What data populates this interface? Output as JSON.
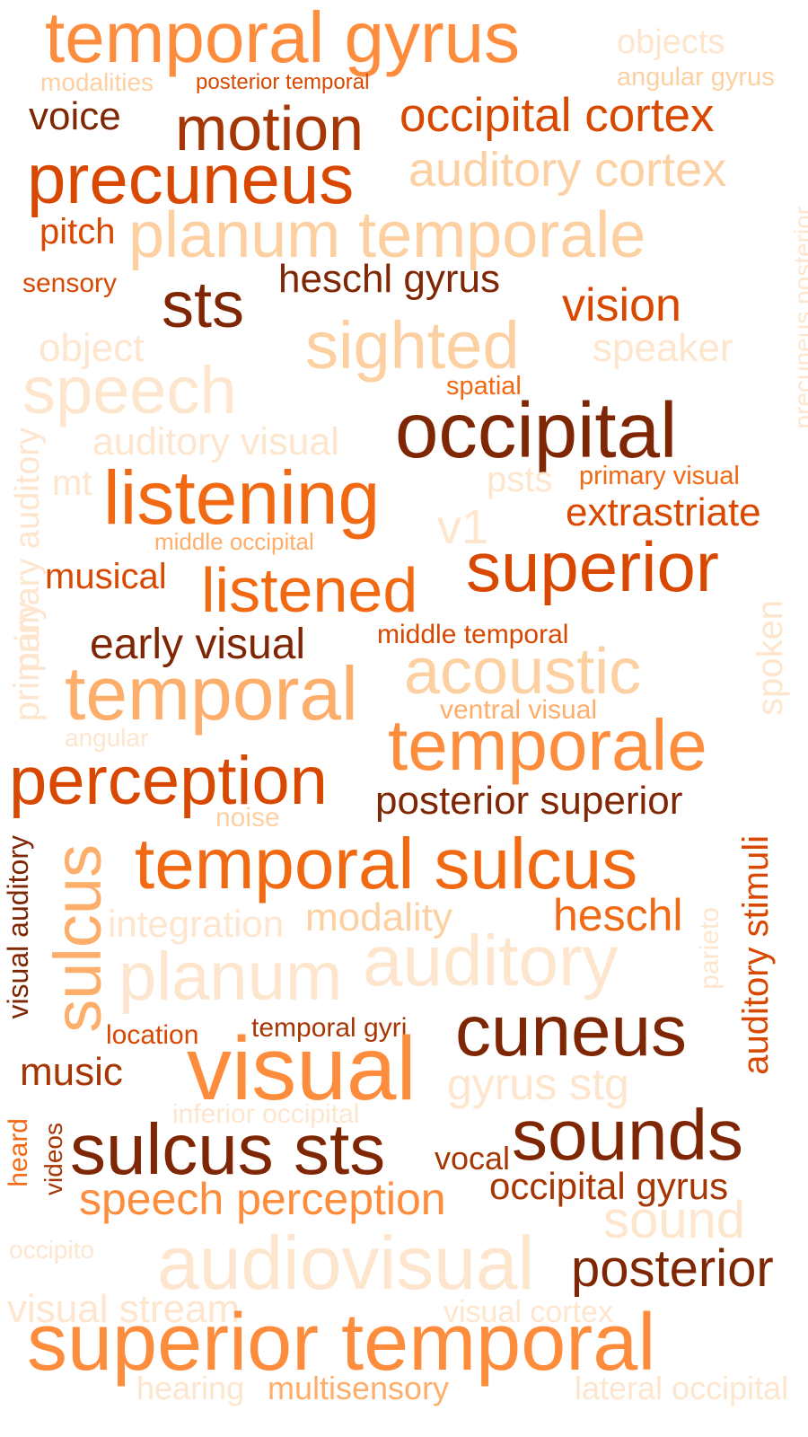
{
  "palette": {
    "darkest": "#7f2704",
    "dark": "#a63603",
    "deep": "#d94801",
    "strong": "#f16913",
    "mid": "#fd8d3c",
    "light": "#fdae6b",
    "pale": "#fdd0a2",
    "faint": "#fee6ce"
  },
  "words": [
    {
      "text": "temporal gyrus",
      "color": "#fd8d3c"
    },
    {
      "text": "objects",
      "color": "#fee6ce"
    },
    {
      "text": "modalities",
      "color": "#fdd0a2"
    },
    {
      "text": "posterior temporal",
      "color": "#d94801"
    },
    {
      "text": "angular gyrus",
      "color": "#fdd0a2"
    },
    {
      "text": "voice",
      "color": "#7f2704"
    },
    {
      "text": "motion",
      "color": "#a63603"
    },
    {
      "text": "occipital cortex",
      "color": "#d94801"
    },
    {
      "text": "precuneus",
      "color": "#d94801"
    },
    {
      "text": "auditory cortex",
      "color": "#fdd0a2"
    },
    {
      "text": "pitch",
      "color": "#d94801"
    },
    {
      "text": "planum temporale",
      "color": "#fdd0a2"
    },
    {
      "text": "sensory",
      "color": "#d94801"
    },
    {
      "text": "heschl gyrus",
      "color": "#7f2704"
    },
    {
      "text": "sts",
      "color": "#7f2704"
    },
    {
      "text": "vision",
      "color": "#d94801"
    },
    {
      "text": "precuneus posterior",
      "color": "#fee6ce"
    },
    {
      "text": "object",
      "color": "#fee6ce"
    },
    {
      "text": "sighted",
      "color": "#fdd0a2"
    },
    {
      "text": "speaker",
      "color": "#fee6ce"
    },
    {
      "text": "speech",
      "color": "#fee6ce"
    },
    {
      "text": "spatial",
      "color": "#f16913"
    },
    {
      "text": "occipital",
      "color": "#7f2704"
    },
    {
      "text": "auditory visual",
      "color": "#fee6ce"
    },
    {
      "text": "primary auditory",
      "color": "#fee6ce"
    },
    {
      "text": "mt",
      "color": "#fee6ce"
    },
    {
      "text": "listening",
      "color": "#f16913"
    },
    {
      "text": "psts",
      "color": "#fee6ce"
    },
    {
      "text": "primary visual",
      "color": "#f16913"
    },
    {
      "text": "extrastriate",
      "color": "#d94801"
    },
    {
      "text": "v1",
      "color": "#fee6ce"
    },
    {
      "text": "middle occipital",
      "color": "#fdae6b"
    },
    {
      "text": "superior",
      "color": "#d94801"
    },
    {
      "text": "musical",
      "color": "#d94801"
    },
    {
      "text": "listened",
      "color": "#f16913"
    },
    {
      "text": "spoken",
      "color": "#fee6ce"
    },
    {
      "text": "early visual",
      "color": "#7f2704"
    },
    {
      "text": "middle temporal",
      "color": "#d94801"
    },
    {
      "text": "primary",
      "color": "#fee6ce"
    },
    {
      "text": "acoustic",
      "color": "#fdd0a2"
    },
    {
      "text": "temporal",
      "color": "#fdae6b"
    },
    {
      "text": "ventral visual",
      "color": "#fdae6b"
    },
    {
      "text": "angular",
      "color": "#fee6ce"
    },
    {
      "text": "temporale",
      "color": "#fd8d3c"
    },
    {
      "text": "perception",
      "color": "#d94801"
    },
    {
      "text": "posterior superior",
      "color": "#7f2704"
    },
    {
      "text": "noise",
      "color": "#fdd0a2"
    },
    {
      "text": "visual auditory",
      "color": "#7f2704"
    },
    {
      "text": "sulcus",
      "color": "#fdae6b"
    },
    {
      "text": "temporal sulcus",
      "color": "#f16913"
    },
    {
      "text": "auditory stimuli",
      "color": "#d94801"
    },
    {
      "text": "integration",
      "color": "#fee6ce"
    },
    {
      "text": "modality",
      "color": "#fdd0a2"
    },
    {
      "text": "heschl",
      "color": "#f16913"
    },
    {
      "text": "parieto",
      "color": "#fee6ce"
    },
    {
      "text": "planum",
      "color": "#fee6ce"
    },
    {
      "text": "auditory",
      "color": "#fee6ce"
    },
    {
      "text": "location",
      "color": "#d94801"
    },
    {
      "text": "temporal gyri",
      "color": "#a63603"
    },
    {
      "text": "cuneus",
      "color": "#7f2704"
    },
    {
      "text": "music",
      "color": "#a63603"
    },
    {
      "text": "visual",
      "color": "#fd8d3c"
    },
    {
      "text": "gyrus stg",
      "color": "#fee6ce"
    },
    {
      "text": "inferior occipital",
      "color": "#fee6ce"
    },
    {
      "text": "heard",
      "color": "#f16913"
    },
    {
      "text": "videos",
      "color": "#a63603"
    },
    {
      "text": "sulcus sts",
      "color": "#7f2704"
    },
    {
      "text": "vocal",
      "color": "#a63603"
    },
    {
      "text": "sounds",
      "color": "#7f2704"
    },
    {
      "text": "occipital gyrus",
      "color": "#a63603"
    },
    {
      "text": "speech perception",
      "color": "#fd8d3c"
    },
    {
      "text": "sound",
      "color": "#fee6ce"
    },
    {
      "text": "occipito",
      "color": "#fee6ce"
    },
    {
      "text": "audiovisual",
      "color": "#fee6ce"
    },
    {
      "text": "posterior",
      "color": "#7f2704"
    },
    {
      "text": "visual stream",
      "color": "#fee6ce"
    },
    {
      "text": "visual cortex",
      "color": "#fee6ce"
    },
    {
      "text": "superior temporal",
      "color": "#fd8d3c"
    },
    {
      "text": "hearing",
      "color": "#fee6ce"
    },
    {
      "text": "multisensory",
      "color": "#fdae6b"
    },
    {
      "text": "lateral occipital",
      "color": "#fee6ce"
    }
  ]
}
